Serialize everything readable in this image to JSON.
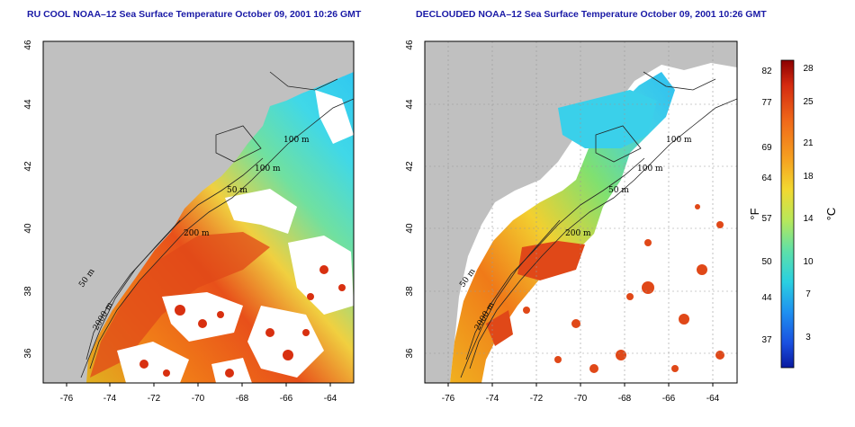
{
  "panels": [
    {
      "id": "left",
      "title": "RU COOL NOAA–12 Sea Surface Temperature October 09, 2001 10:26 GMT",
      "x_ticks": [
        "-76",
        "-74",
        "-72",
        "-70",
        "-68",
        "-66",
        "-64"
      ],
      "y_ticks": [
        "36",
        "38",
        "40",
        "42",
        "44",
        "46"
      ],
      "contour_labels": [
        "100 m",
        "100 m",
        "50 m",
        "200 m",
        "50 m",
        "2000 m"
      ]
    },
    {
      "id": "right",
      "title": "DECLOUDED NOAA–12 Sea Surface Temperature October 09, 2001 10:26 GMT",
      "x_ticks": [
        "-76",
        "-74",
        "-72",
        "-70",
        "-68",
        "-66",
        "-64"
      ],
      "y_ticks": [
        "36",
        "38",
        "40",
        "42",
        "44",
        "46"
      ],
      "contour_labels": [
        "100 m",
        "100 m",
        "50 m",
        "200 m",
        "50 m",
        "2000 m"
      ]
    }
  ],
  "colorbar": {
    "fahrenheit_ticks": [
      "82",
      "77",
      "69",
      "64",
      "57",
      "50",
      "44",
      "37"
    ],
    "celsius_ticks": [
      "28",
      "25",
      "21",
      "18",
      "14",
      "10",
      "7",
      "3"
    ],
    "fahrenheit_unit": "°F",
    "celsius_unit": "°C",
    "colors": [
      "#8b0000",
      "#d42a10",
      "#f06a1a",
      "#f5a020",
      "#f2d830",
      "#b8e85a",
      "#5ee0a8",
      "#2ad0e0",
      "#1e90f0",
      "#1a50e0",
      "#0a1aa0"
    ]
  },
  "colors": {
    "land": "#c0c0c0",
    "cloud": "#ffffff",
    "title": "#1a1aa6"
  }
}
